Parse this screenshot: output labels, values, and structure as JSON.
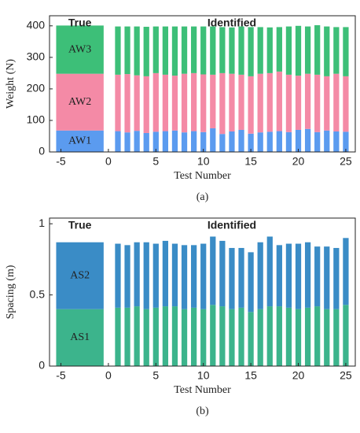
{
  "chart_data": [
    {
      "type": "bar",
      "stacked": true,
      "panel_label": "(a)",
      "xlabel": "Test Number",
      "ylabel": "Weight (N)",
      "annotations": [
        "True",
        "Identified"
      ],
      "xlim": [
        -6.2,
        26
      ],
      "xticks": [
        -5,
        0,
        5,
        10,
        15,
        20,
        25
      ],
      "ylim": [
        0,
        432
      ],
      "yticks": [
        0,
        100,
        200,
        300,
        400
      ],
      "x": [
        1,
        2,
        3,
        4,
        5,
        6,
        7,
        8,
        9,
        10,
        11,
        12,
        13,
        14,
        15,
        16,
        17,
        18,
        19,
        20,
        21,
        22,
        23,
        24,
        25
      ],
      "true_span": [
        -5.5,
        -0.5
      ],
      "series": [
        {
          "name": "AW1",
          "color": "#5b9bef",
          "true_value": 68,
          "values": [
            66,
            62,
            67,
            60,
            64,
            66,
            68,
            62,
            66,
            63,
            75,
            57,
            65,
            70,
            58,
            62,
            64,
            66,
            63,
            70,
            73,
            63,
            68,
            65,
            64
          ]
        },
        {
          "name": "AW2",
          "color": "#f48aa6",
          "true_value": 180,
          "values": [
            179,
            185,
            176,
            180,
            186,
            179,
            174,
            186,
            184,
            183,
            170,
            193,
            183,
            175,
            182,
            186,
            186,
            189,
            182,
            172,
            175,
            182,
            172,
            183,
            176
          ]
        },
        {
          "name": "AW3",
          "color": "#3dbf78",
          "true_value": 153,
          "values": [
            153,
            151,
            155,
            157,
            148,
            153,
            156,
            150,
            148,
            152,
            153,
            146,
            147,
            153,
            156,
            148,
            145,
            141,
            153,
            158,
            150,
            157,
            158,
            148,
            156
          ]
        }
      ]
    },
    {
      "type": "bar",
      "stacked": true,
      "panel_label": "(b)",
      "xlabel": "Test Number",
      "ylabel": "Spacing (m)",
      "annotations": [
        "True",
        "Identified"
      ],
      "xlim": [
        -6.2,
        26
      ],
      "xticks": [
        -5,
        0,
        5,
        10,
        15,
        20,
        25
      ],
      "ylim": [
        0,
        1.04
      ],
      "yticks": [
        0,
        0.5,
        1
      ],
      "x": [
        1,
        2,
        3,
        4,
        5,
        6,
        7,
        8,
        9,
        10,
        11,
        12,
        13,
        14,
        15,
        16,
        17,
        18,
        19,
        20,
        21,
        22,
        23,
        24,
        25
      ],
      "true_span": [
        -5.5,
        -0.5
      ],
      "series": [
        {
          "name": "AS1",
          "color": "#3cb48c",
          "true_value": 0.4,
          "values": [
            0.41,
            0.41,
            0.42,
            0.4,
            0.41,
            0.42,
            0.42,
            0.4,
            0.41,
            0.4,
            0.43,
            0.42,
            0.4,
            0.41,
            0.38,
            0.4,
            0.42,
            0.42,
            0.41,
            0.4,
            0.41,
            0.42,
            0.4,
            0.4,
            0.43
          ]
        },
        {
          "name": "AS2",
          "color": "#3a8cc6",
          "true_value": 0.47,
          "values": [
            0.45,
            0.44,
            0.45,
            0.47,
            0.45,
            0.46,
            0.44,
            0.45,
            0.44,
            0.46,
            0.48,
            0.46,
            0.43,
            0.42,
            0.42,
            0.47,
            0.49,
            0.43,
            0.45,
            0.46,
            0.46,
            0.42,
            0.44,
            0.43,
            0.47
          ]
        }
      ]
    }
  ]
}
